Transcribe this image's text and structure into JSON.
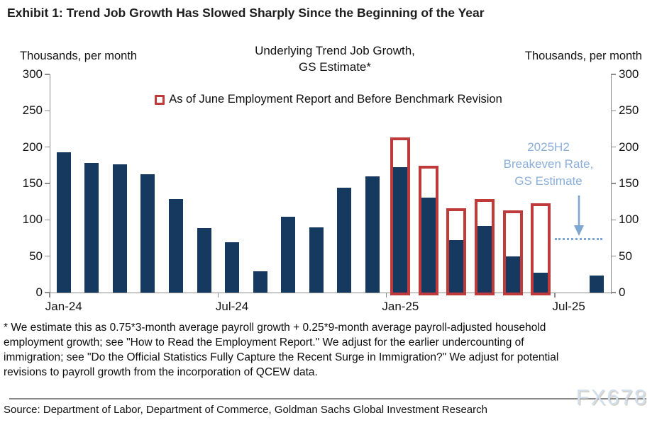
{
  "page": {
    "title": "Exhibit 1: Trend Job Growth Has Slowed Sharply Since the Beginning of the Year"
  },
  "chart": {
    "left_axis_label": "Thousands, per month",
    "right_axis_label": "Thousands, per month",
    "title_line1": "Underlying Trend Job Growth,",
    "title_line2": "GS Estimate*",
    "legend_label": "As of June Employment Report and Before Benchmark Revision",
    "annotation": {
      "line1": "2025H2",
      "line2": "Breakeven Rate,",
      "line3": "GS Estimate"
    }
  },
  "chart_data": {
    "type": "bar",
    "title": "Underlying Trend Job Growth, GS Estimate*",
    "xlabel": "",
    "ylabel": "Thousands, per month",
    "ylim": [
      0,
      300
    ],
    "y_ticks": [
      0,
      50,
      100,
      150,
      200,
      250,
      300
    ],
    "grid": false,
    "legend_position": "top-center",
    "categories": [
      "Jan-24",
      "Feb-24",
      "Mar-24",
      "Apr-24",
      "May-24",
      "Jun-24",
      "Jul-24",
      "Aug-24",
      "Sep-24",
      "Oct-24",
      "Nov-24",
      "Dec-24",
      "Jan-25",
      "Feb-25",
      "Mar-25",
      "Apr-25",
      "May-25",
      "Jun-25",
      "Jul-25",
      "Aug-25"
    ],
    "x_tick_labels": [
      "Jan-24",
      "Jul-24",
      "Jan-25",
      "Jul-25"
    ],
    "x_tick_slots": [
      0,
      6,
      12,
      18
    ],
    "series": [
      {
        "name": "Underlying trend job growth, GS estimate (current)",
        "style": "solid",
        "color": "#163A5F",
        "values": [
          193,
          178,
          176,
          163,
          129,
          89,
          69,
          29,
          104,
          90,
          144,
          160,
          172,
          131,
          72,
          92,
          50,
          27,
          null,
          23
        ]
      },
      {
        "name": "As of June Employment Report and Before Benchmark Revision",
        "style": "outline",
        "color": "#BE3A3B",
        "values": [
          null,
          null,
          null,
          null,
          null,
          null,
          null,
          null,
          null,
          null,
          null,
          null,
          213,
          174,
          116,
          129,
          113,
          123,
          null,
          null
        ]
      }
    ],
    "breakeven_line": {
      "value": 73,
      "label": "2025H2 Breakeven Rate, GS Estimate",
      "color": "#7EA6D3",
      "span_slots": [
        18,
        20
      ]
    }
  },
  "footnote": {
    "lines": [
      "* We estimate this as 0.75*3-month average payroll growth + 0.25*9-month average payroll-adjusted household",
      "employment growth; see \"How to Read the Employment Report.\" We adjust for the earlier undercounting of",
      "immigration; see \"Do the Official Statistics Fully Capture the Recent Surge in Immigration?\" We adjust for potential",
      "revisions to payroll growth from the incorporation of QCEW data."
    ]
  },
  "source": {
    "text": "Source: Department of Labor, Department of Commerce, Goldman Sachs Global Investment Research"
  },
  "watermark": {
    "text": "FX678"
  },
  "colors": {
    "bar": "#163A5F",
    "revision_outline": "#BE3A3B",
    "annotation_blue": "#8AAEDA",
    "breakeven_blue": "#7EA6D3",
    "axis_gray": "#8C8C8C"
  }
}
